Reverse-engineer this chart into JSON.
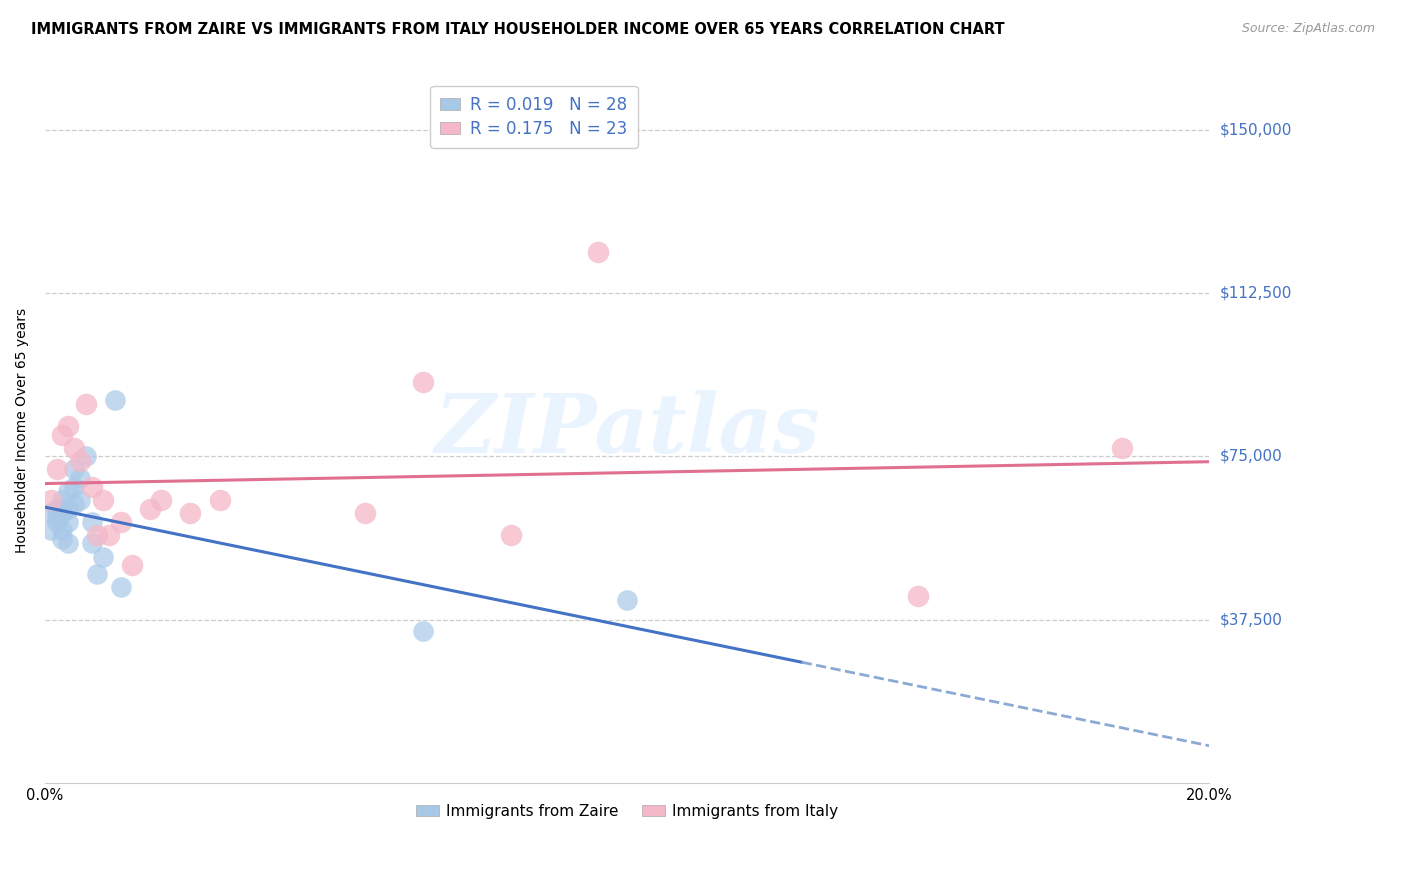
{
  "title": "IMMIGRANTS FROM ZAIRE VS IMMIGRANTS FROM ITALY HOUSEHOLDER INCOME OVER 65 YEARS CORRELATION CHART",
  "source": "Source: ZipAtlas.com",
  "ylabel": "Householder Income Over 65 years",
  "xlim": [
    0.0,
    0.2
  ],
  "ylim": [
    0,
    162000
  ],
  "yticks": [
    37500,
    75000,
    112500,
    150000
  ],
  "ytick_labels": [
    "$37,500",
    "$75,000",
    "$112,500",
    "$150,000"
  ],
  "xtick_vals": [
    0.0,
    0.05,
    0.1,
    0.15,
    0.2
  ],
  "xtick_labels": [
    "0.0%",
    "",
    "",
    "",
    "20.0%"
  ],
  "watermark": "ZIPatlas",
  "legend_r_zaire": "R = 0.019",
  "legend_n_zaire": "N = 28",
  "legend_r_italy": "R = 0.175",
  "legend_n_italy": "N = 23",
  "color_zaire": "#a8c8e8",
  "color_italy": "#f4b8c8",
  "color_zaire_line": "#4472c4",
  "color_italy_line": "#e07090",
  "color_ytick": "#4472c4",
  "color_dashed": "#8aaad4",
  "grid_color": "#cccccc",
  "background_color": "#ffffff",
  "title_fontsize": 10.5,
  "zaire_x": [
    0.001,
    0.001,
    0.002,
    0.002,
    0.002,
    0.003,
    0.003,
    0.003,
    0.003,
    0.003,
    0.004,
    0.004,
    0.004,
    0.004,
    0.005,
    0.005,
    0.005,
    0.006,
    0.006,
    0.007,
    0.008,
    0.008,
    0.009,
    0.01,
    0.012,
    0.013,
    0.065,
    0.1
  ],
  "zaire_y": [
    62000,
    58000,
    60000,
    61000,
    63000,
    56000,
    58000,
    62000,
    63000,
    65000,
    55000,
    60000,
    63000,
    67000,
    64000,
    68000,
    72000,
    65000,
    70000,
    75000,
    55000,
    60000,
    48000,
    52000,
    88000,
    45000,
    35000,
    42000
  ],
  "italy_x": [
    0.001,
    0.002,
    0.003,
    0.004,
    0.005,
    0.006,
    0.007,
    0.008,
    0.009,
    0.01,
    0.011,
    0.013,
    0.015,
    0.018,
    0.02,
    0.025,
    0.03,
    0.055,
    0.065,
    0.08,
    0.095,
    0.15,
    0.185
  ],
  "italy_y": [
    65000,
    72000,
    80000,
    82000,
    77000,
    74000,
    87000,
    68000,
    57000,
    65000,
    57000,
    60000,
    50000,
    63000,
    65000,
    62000,
    65000,
    62000,
    92000,
    57000,
    122000,
    43000,
    77000
  ]
}
